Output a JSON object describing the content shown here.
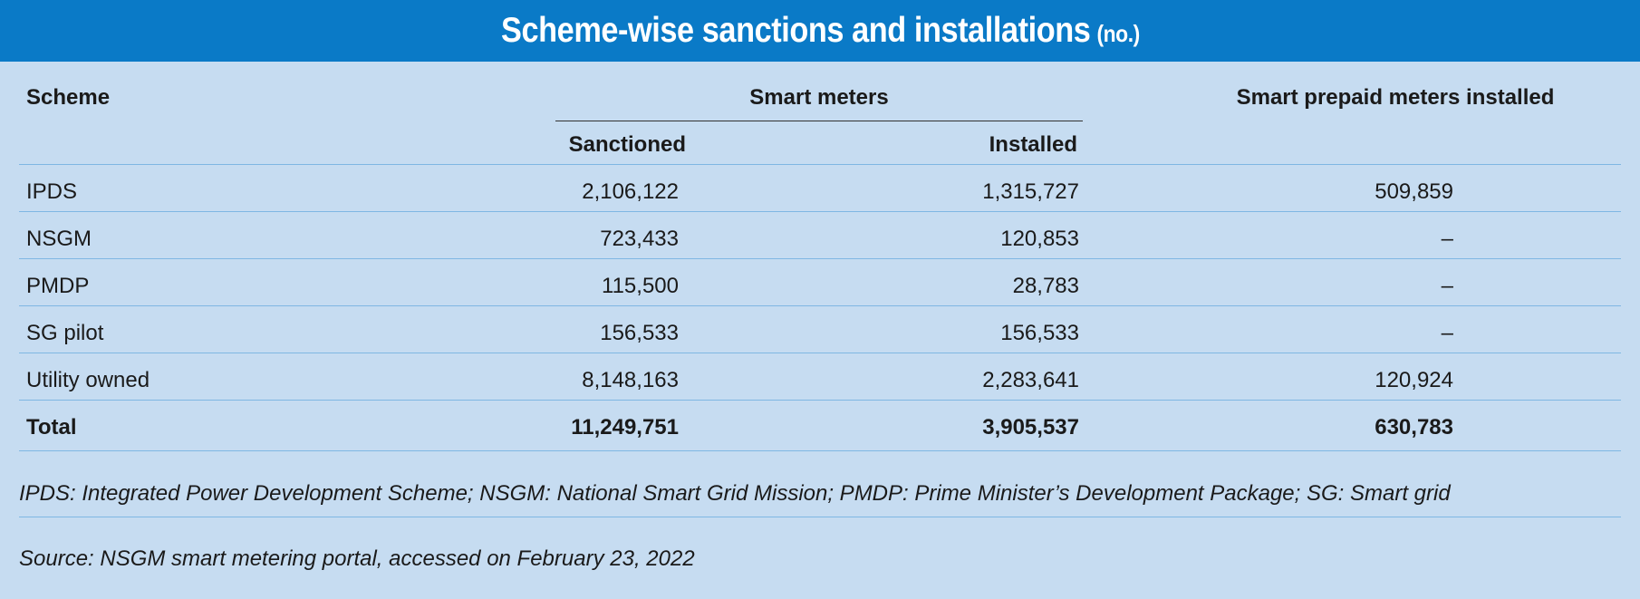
{
  "title": {
    "main": "Scheme-wise sanctions and installations",
    "unit": "(no.)"
  },
  "headers": {
    "scheme": "Scheme",
    "smart_meters": "Smart meters",
    "sanctioned": "Sanctioned",
    "installed": "Installed",
    "prepaid": "Smart prepaid meters installed"
  },
  "rows": [
    {
      "scheme": "IPDS",
      "sanctioned": "2,106,122",
      "installed": "1,315,727",
      "prepaid": "509,859"
    },
    {
      "scheme": "NSGM",
      "sanctioned": "723,433",
      "installed": "120,853",
      "prepaid": "–"
    },
    {
      "scheme": "PMDP",
      "sanctioned": "115,500",
      "installed": "28,783",
      "prepaid": "–"
    },
    {
      "scheme": "SG pilot",
      "sanctioned": "156,533",
      "installed": "156,533",
      "prepaid": "–"
    },
    {
      "scheme": "Utility owned",
      "sanctioned": "8,148,163",
      "installed": "2,283,641",
      "prepaid": "120,924"
    }
  ],
  "total": {
    "scheme": "Total",
    "sanctioned": "11,249,751",
    "installed": "3,905,537",
    "prepaid": "630,783"
  },
  "abbreviations": "IPDS: Integrated Power Development Scheme; NSGM: National Smart Grid Mission; PMDP: Prime Minister’s Development Package; SG: Smart grid",
  "source": "Source: NSGM smart metering portal, accessed on February 23, 2022"
}
